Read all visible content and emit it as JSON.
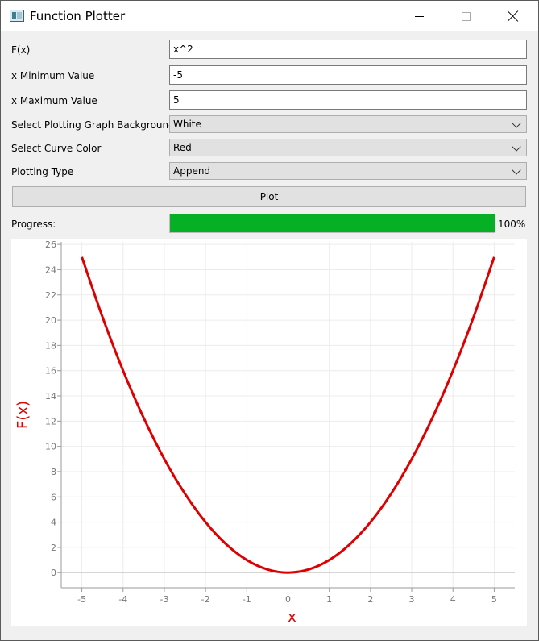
{
  "window": {
    "title": "Function Plotter"
  },
  "form": {
    "fx_label": "F(x)",
    "fx_value": "x^2",
    "xmin_label": "x Minimum Value",
    "xmin_value": "-5",
    "xmax_label": "x Maximum Value",
    "xmax_value": "5",
    "background_label": "Select Plotting Graph Background",
    "background_value": "White",
    "curve_color_label": "Select Curve Color",
    "curve_color_value": "Red",
    "plot_type_label": "Plotting Type",
    "plot_type_value": "Append",
    "plot_button": "Plot",
    "progress_label": "Progress:",
    "progress_text": "100%",
    "progress_fraction": 1.0
  },
  "colors": {
    "curve": "#dd0000",
    "axis_title": "#e00000",
    "progress": "#06b025",
    "plot_background": "#ffffff"
  },
  "icons": {
    "app": "function-plotter-app-icon",
    "minimize": "minimize-icon",
    "maximize": "maximize-icon",
    "close": "close-icon",
    "dropdown": "chevron-down-icon"
  },
  "chart_data": {
    "type": "line",
    "xlabel": "x",
    "ylabel": "F(x)",
    "xlim": [
      -5.5,
      5.5
    ],
    "ylim": [
      -1.2,
      26.2
    ],
    "x_ticks": [
      -5,
      -4,
      -3,
      -2,
      -1,
      0,
      1,
      2,
      3,
      4,
      5
    ],
    "y_ticks": [
      0,
      2,
      4,
      6,
      8,
      10,
      12,
      14,
      16,
      18,
      20,
      22,
      24,
      26
    ],
    "grid": true,
    "series": [
      {
        "color": "#dd0000",
        "x": [
          -5,
          -4.5,
          -4,
          -3.5,
          -3,
          -2.5,
          -2,
          -1.5,
          -1,
          -0.5,
          0,
          0.5,
          1,
          1.5,
          2,
          2.5,
          3,
          3.5,
          4,
          4.5,
          5
        ],
        "y": [
          25,
          20.25,
          16,
          12.25,
          9,
          6.25,
          4,
          2.25,
          1,
          0.25,
          0,
          0.25,
          1,
          2.25,
          4,
          6.25,
          9,
          12.25,
          16,
          20.25,
          25
        ]
      }
    ]
  }
}
